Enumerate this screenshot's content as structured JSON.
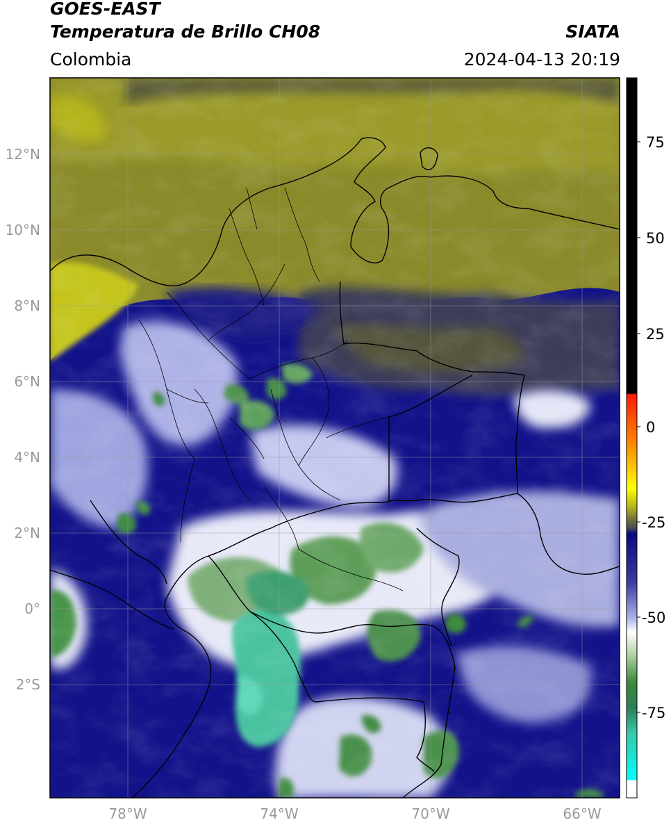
{
  "header": {
    "satellite": "GOES-EAST",
    "product": "Temperatura de Brillo CH08",
    "region": "Colombia",
    "source": "SIATA",
    "timestamp": "2024-04-13 20:19"
  },
  "map": {
    "extent": {
      "lon": [
        -80,
        -65
      ],
      "lat": [
        -5,
        14
      ]
    },
    "lat_labels": [
      "12°N",
      "10°N",
      "8°N",
      "6°N",
      "4°N",
      "2°N",
      "0°",
      "2°S"
    ],
    "lon_labels": [
      "78°W",
      "74°W",
      "70°W",
      "66°W"
    ],
    "gridlines": true
  },
  "colorbar": {
    "range": [
      -95,
      90
    ],
    "ticks": [
      "75",
      "50",
      "25",
      "0",
      "-25",
      "-50",
      "-75"
    ],
    "colors": {
      "black": "#000000",
      "red": "#ff1a00",
      "orange": "#ff9900",
      "yellow": "#ffff00",
      "olive": "#b8b81a",
      "gray": "#4d4d4d",
      "navy": "#0a0a80",
      "lavender": "#aab0e8",
      "white": "#ffffff",
      "green": "#3a8a3a",
      "teal": "#38c8a8",
      "cyan": "#00ffff"
    }
  }
}
